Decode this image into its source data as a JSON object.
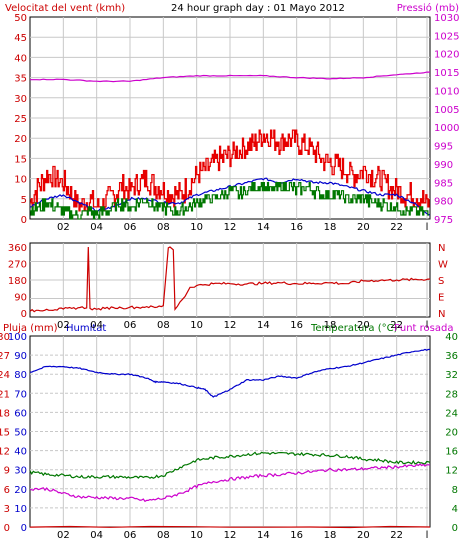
{
  "colors": {
    "wind": "#ff0000",
    "gust": "#e60000",
    "avg": "#0000cc",
    "green": "#007700",
    "pressure": "#cc00cc",
    "dir": "#cc0000",
    "humidity": "#0000cc",
    "temperature": "#007700",
    "dewpoint": "#cc00cc",
    "rain": "#cc0000",
    "grid": "#c8c8c8",
    "frame": "#000000",
    "bg": "#ffffff",
    "page": "#f0f0f0"
  },
  "chart_data": [
    {
      "type": "line",
      "title": "24 hour graph day : 01 Mayo 2012",
      "ylabel_left": "Velocitat del vent (kmh)",
      "ylabel_right": "Pressió (mb)",
      "x_ticks": [
        "02",
        "04",
        "06",
        "08",
        "10",
        "12",
        "14",
        "16",
        "18",
        "20",
        "22",
        "l"
      ],
      "xlim": [
        0,
        24
      ],
      "ylim_left": [
        0,
        50
      ],
      "ylim_right": [
        975,
        1030
      ],
      "y_ticks_left": [
        "0",
        "5",
        "10",
        "15",
        "20",
        "25",
        "30",
        "35",
        "40",
        "45",
        "50"
      ],
      "y_ticks_right": [
        "975",
        "980",
        "985",
        "990",
        "995",
        "1000",
        "1005",
        "1010",
        "1015",
        "1020",
        "1025",
        "1030"
      ],
      "grid": true,
      "series": [
        {
          "key": "gust",
          "axis": "left",
          "style": "gusty",
          "x": [
            0,
            0.5,
            1,
            1.5,
            2,
            2.5,
            3,
            3.5,
            4,
            4.5,
            5,
            5.5,
            6,
            6.5,
            7,
            7.5,
            8,
            8.5,
            9,
            9.5,
            10,
            10.5,
            11,
            11.5,
            12,
            12.5,
            13,
            13.5,
            14,
            14.5,
            15,
            15.5,
            16,
            16.5,
            17,
            17.5,
            18,
            18.5,
            19,
            19.5,
            20,
            20.5,
            21,
            21.5,
            22,
            22.5,
            23,
            23.5,
            24
          ],
          "values": [
            4,
            8,
            11,
            10,
            9,
            6,
            3,
            5,
            3,
            4,
            6,
            8,
            7,
            9,
            10,
            8,
            7,
            6,
            6,
            8,
            11,
            12,
            14,
            15,
            16,
            17,
            18,
            19,
            21,
            20,
            19,
            20,
            19,
            18,
            17,
            15,
            14,
            13,
            12,
            11,
            12,
            11,
            10,
            8,
            7,
            6,
            6,
            5,
            3
          ]
        },
        {
          "key": "avg",
          "axis": "left",
          "style": "smooth",
          "x": [
            0,
            1,
            2,
            3,
            4,
            5,
            6,
            7,
            8,
            9,
            10,
            11,
            12,
            13,
            14,
            15,
            16,
            17,
            18,
            19,
            20,
            21,
            22,
            23,
            24
          ],
          "values": [
            3,
            5,
            6,
            4,
            2,
            3,
            5,
            5,
            4,
            4,
            6,
            7,
            8,
            9,
            10,
            9,
            10,
            9,
            9,
            8,
            7,
            6,
            6,
            4,
            1
          ]
        },
        {
          "key": "green",
          "axis": "left",
          "style": "gusty",
          "x": [
            0,
            0.5,
            1,
            1.5,
            2,
            2.5,
            3,
            3.5,
            4,
            4.5,
            5,
            5.5,
            6,
            6.5,
            7,
            7.5,
            8,
            8.5,
            9,
            9.5,
            10,
            10.5,
            11,
            11.5,
            12,
            12.5,
            13,
            13.5,
            14,
            14.5,
            15,
            15.5,
            16,
            16.5,
            17,
            17.5,
            18,
            18.5,
            19,
            19.5,
            20,
            20.5,
            21,
            21.5,
            22,
            22.5,
            23,
            23.5,
            24
          ],
          "values": [
            2,
            3,
            4,
            3,
            2,
            1,
            1,
            2,
            1,
            2,
            3,
            4,
            3,
            4,
            5,
            3,
            3,
            2,
            2,
            3,
            4,
            5,
            5,
            6,
            7,
            6,
            7,
            8,
            8,
            7,
            8,
            8,
            7,
            8,
            7,
            6,
            6,
            6,
            5,
            5,
            5,
            4,
            4,
            3,
            3,
            2,
            2,
            2,
            1
          ]
        },
        {
          "key": "pressure",
          "axis": "right",
          "style": "smooth",
          "x": [
            0,
            2,
            4,
            6,
            8,
            10,
            12,
            14,
            16,
            18,
            20,
            22,
            24
          ],
          "values": [
            1013,
            1013,
            1012.5,
            1012.5,
            1013.5,
            1014,
            1014,
            1014,
            1013.5,
            1013.2,
            1013.5,
            1014.3,
            1015
          ]
        }
      ]
    },
    {
      "type": "line",
      "ylabel_right_ticks": [
        "N",
        "W",
        "S",
        "E",
        "N"
      ],
      "ylim": [
        0,
        360
      ],
      "y_ticks_left": [
        "0",
        "90",
        "180",
        "270",
        "360"
      ],
      "x_ticks": [
        "02",
        "04",
        "06",
        "08",
        "10",
        "12",
        "14",
        "16",
        "18",
        "20",
        "22",
        "l"
      ],
      "xlim": [
        0,
        24
      ],
      "grid": true,
      "series": [
        {
          "key": "dir",
          "axis": "left",
          "style": "gusty",
          "x": [
            0,
            0.5,
            1,
            1.5,
            2,
            2.5,
            3,
            3.4,
            3.5,
            3.6,
            4,
            4.5,
            5,
            5.5,
            6,
            6.5,
            7,
            7.5,
            8,
            8.3,
            8.4,
            8.6,
            8.7,
            9,
            9.3,
            9.6,
            10,
            10.5,
            11,
            12,
            13,
            14,
            15,
            16,
            17,
            18,
            19,
            20,
            21,
            22,
            23,
            24
          ],
          "values": [
            10,
            15,
            20,
            18,
            22,
            25,
            30,
            28,
            360,
            25,
            20,
            25,
            30,
            28,
            32,
            30,
            35,
            30,
            40,
            355,
            360,
            345,
            20,
            60,
            90,
            140,
            150,
            155,
            160,
            160,
            158,
            162,
            165,
            160,
            162,
            165,
            160,
            175,
            178,
            180,
            182,
            185
          ]
        }
      ]
    },
    {
      "type": "line",
      "ylabel_left_1": "Pluja (mm)",
      "ylabel_left_2": "Humitat",
      "ylabel_right": "Temperatura (°C)",
      "ylabel_right_2": "Punt rosada",
      "x_ticks": [
        "02",
        "04",
        "06",
        "08",
        "10",
        "12",
        "14",
        "16",
        "18",
        "20",
        "22",
        "l"
      ],
      "xlim": [
        0,
        24
      ],
      "y_ticks_left_rain": [
        "0",
        "3",
        "6",
        "9",
        "12",
        "15",
        "18",
        "21",
        "24",
        "27",
        "30"
      ],
      "y_ticks_left_hum": [
        "0",
        "10",
        "20",
        "30",
        "40",
        "50",
        "60",
        "70",
        "80",
        "90",
        "100"
      ],
      "y_ticks_right": [
        "0",
        "4",
        "8",
        "12",
        "16",
        "20",
        "24",
        "28",
        "32",
        "36",
        "40"
      ],
      "ylim_left": [
        0,
        100
      ],
      "ylim_right": [
        0,
        40
      ],
      "grid": true,
      "series": [
        {
          "key": "humidity",
          "axis": "left",
          "style": "smooth",
          "x": [
            0,
            1,
            2,
            3,
            4,
            5,
            6,
            7,
            7.5,
            8,
            9,
            10,
            10.5,
            11,
            11.5,
            12,
            13,
            14,
            15,
            16,
            17,
            18,
            19,
            20,
            21,
            22,
            23,
            24
          ],
          "values": [
            81,
            84,
            84,
            83,
            81,
            80,
            80,
            78,
            76,
            76,
            75,
            73,
            72,
            68,
            70,
            72,
            77,
            77,
            79,
            78,
            81,
            83,
            84,
            86,
            88,
            90,
            92,
            93
          ]
        },
        {
          "key": "temperature",
          "axis": "right",
          "style": "smooth",
          "x": [
            0,
            1,
            2,
            3,
            4,
            5,
            6,
            7,
            8,
            9,
            10,
            11,
            12,
            13,
            14,
            15,
            16,
            17,
            18,
            19,
            20,
            21,
            22,
            23,
            24
          ],
          "values": [
            11.5,
            11,
            10.8,
            10.5,
            10.5,
            10.5,
            10.4,
            10.3,
            10.8,
            12.5,
            14,
            14.5,
            14.8,
            15.2,
            15.5,
            15.4,
            15.3,
            15.2,
            15,
            14.8,
            14.2,
            14,
            13.5,
            13.5,
            13.5
          ]
        },
        {
          "key": "dewpoint",
          "axis": "right",
          "style": "smooth",
          "x": [
            0,
            1,
            2,
            3,
            4,
            5,
            6,
            7,
            8,
            9,
            10,
            11,
            12,
            13,
            14,
            15,
            16,
            17,
            18,
            19,
            20,
            21,
            22,
            23,
            24
          ],
          "values": [
            8,
            8,
            7,
            6.3,
            6.2,
            6,
            6,
            5.5,
            6,
            7,
            8.5,
            9.5,
            10,
            10.4,
            10.8,
            11,
            11.3,
            11.6,
            12,
            12,
            12.2,
            12.4,
            12.6,
            12.8,
            13
          ]
        },
        {
          "key": "rain",
          "axis": "left",
          "style": "smooth",
          "x": [
            0,
            24
          ],
          "values": [
            0,
            0
          ]
        }
      ]
    }
  ]
}
